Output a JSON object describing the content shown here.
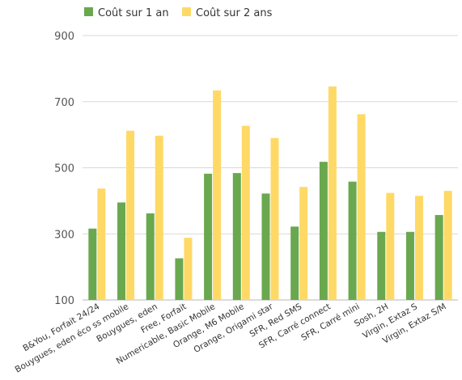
{
  "chart_data": {
    "type": "bar",
    "categories": [
      "B&You, Forfait 24/24",
      "Bouygues, eden éco ss mobile",
      "Bouygues, eden",
      "Free, Forfait",
      "Numericable, Basic Mobile",
      "Orange, M6 Mobile",
      "Orange, Origami star",
      "SFR, Red SMS",
      "SFR, Carré connect",
      "SFR, Carré mini",
      "Sosh, 2H",
      "Virgin, Extaz S",
      "Virgin, Extaz S/M"
    ],
    "series": [
      {
        "name": "Coût sur 1 an",
        "color": "#6aa84f",
        "values": [
          316,
          395,
          362,
          226,
          482,
          484,
          422,
          322,
          518,
          458,
          306,
          306,
          357
        ]
      },
      {
        "name": "Coût sur 2 ans",
        "color": "#ffd966",
        "values": [
          437,
          612,
          597,
          288,
          734,
          627,
          590,
          442,
          746,
          662,
          424,
          415,
          430
        ]
      }
    ],
    "yticks": [
      "900",
      "700",
      "500",
      "300",
      "100"
    ],
    "ylim": [
      100,
      900
    ],
    "grid": true,
    "legend": "top-left"
  }
}
